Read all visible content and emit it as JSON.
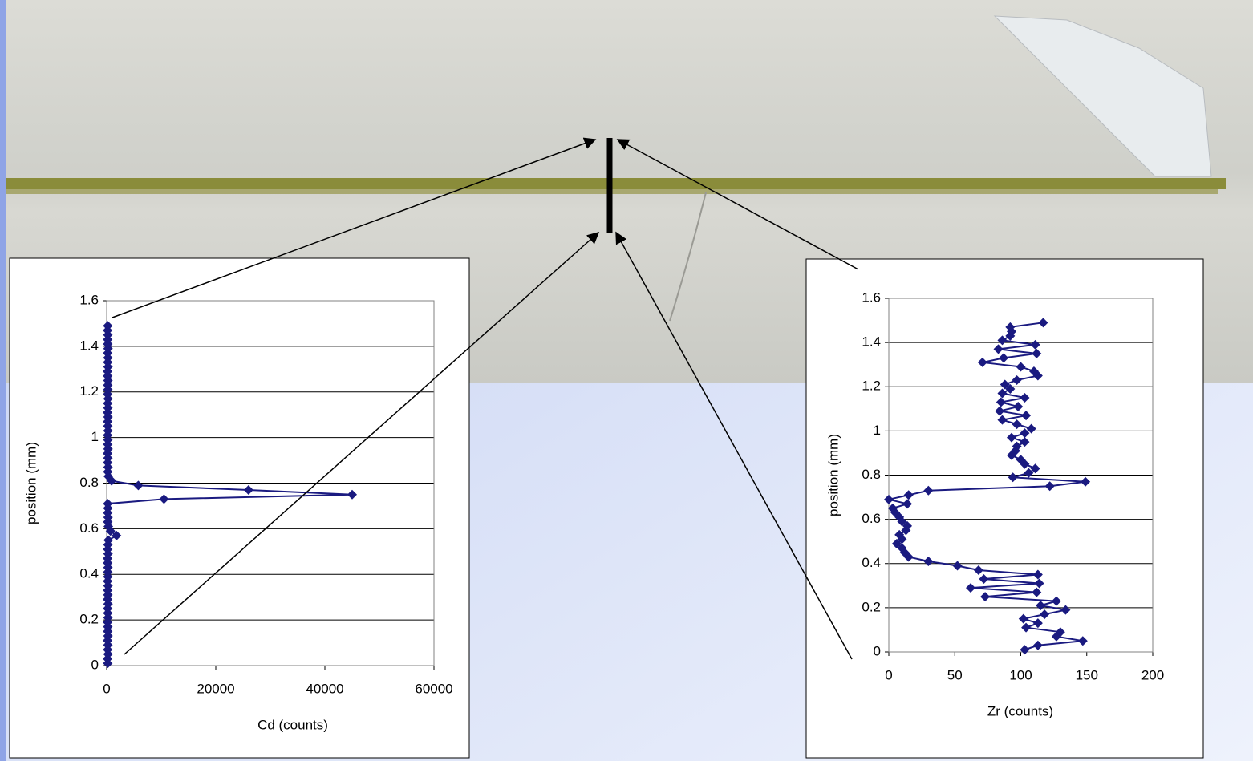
{
  "chart_data": [
    {
      "type": "line",
      "color": "#1a1a80",
      "xlabel": "Cd (counts)",
      "ylabel": "position (mm)",
      "values": [
        200,
        150,
        250,
        180,
        220,
        160,
        240,
        190,
        210,
        170,
        230,
        200,
        180,
        250,
        160,
        220,
        190,
        240,
        170,
        210,
        200,
        230,
        180,
        160,
        250,
        190,
        220,
        300,
        1800,
        700,
        300,
        200,
        250,
        180,
        220,
        200,
        10500,
        45000,
        26000,
        5800,
        900,
        300,
        200,
        240,
        180,
        220,
        160,
        250,
        190,
        210,
        170,
        230,
        200,
        180,
        240,
        160,
        220,
        190,
        250,
        170,
        210,
        200,
        230,
        180,
        160,
        240,
        190,
        220,
        170,
        250,
        200,
        180,
        210,
        160,
        200
      ],
      "y": [
        0.01,
        0.03,
        0.05,
        0.07,
        0.09,
        0.11,
        0.13,
        0.15,
        0.17,
        0.19,
        0.21,
        0.23,
        0.25,
        0.27,
        0.29,
        0.31,
        0.33,
        0.35,
        0.37,
        0.39,
        0.41,
        0.43,
        0.45,
        0.47,
        0.49,
        0.51,
        0.53,
        0.55,
        0.57,
        0.59,
        0.61,
        0.63,
        0.65,
        0.67,
        0.69,
        0.71,
        0.73,
        0.75,
        0.77,
        0.79,
        0.81,
        0.83,
        0.85,
        0.87,
        0.89,
        0.91,
        0.93,
        0.95,
        0.97,
        0.99,
        1.01,
        1.03,
        1.05,
        1.07,
        1.09,
        1.11,
        1.13,
        1.15,
        1.17,
        1.19,
        1.21,
        1.23,
        1.25,
        1.27,
        1.29,
        1.31,
        1.33,
        1.35,
        1.37,
        1.39,
        1.41,
        1.43,
        1.45,
        1.47,
        1.49
      ],
      "xlim": [
        0,
        60000
      ],
      "xticks": [
        0,
        20000,
        40000,
        60000
      ],
      "ylim": [
        0,
        1.6
      ],
      "yticks": [
        0,
        0.2,
        0.4,
        0.6,
        0.8,
        1,
        1.2,
        1.4,
        1.6
      ],
      "grid": true
    },
    {
      "type": "line",
      "color": "#1a1a80",
      "xlabel": "Zr (counts)",
      "ylabel": "position (mm)",
      "values": [
        103,
        113,
        147,
        127,
        130,
        104,
        113,
        102,
        118,
        134,
        115,
        127,
        73,
        112,
        62,
        114,
        72,
        113,
        68,
        52,
        30,
        15,
        12,
        10,
        6,
        10,
        8,
        13,
        14,
        10,
        8,
        5,
        3,
        14,
        0,
        15,
        30,
        122,
        149,
        94,
        106,
        111,
        103,
        100,
        93,
        96,
        97,
        103,
        93,
        103,
        108,
        97,
        86,
        104,
        84,
        98,
        85,
        103,
        86,
        92,
        88,
        97,
        113,
        110,
        100,
        71,
        87,
        112,
        83,
        111,
        86,
        92,
        93,
        92,
        117
      ],
      "y": [
        0.01,
        0.03,
        0.05,
        0.07,
        0.09,
        0.11,
        0.13,
        0.15,
        0.17,
        0.19,
        0.21,
        0.23,
        0.25,
        0.27,
        0.29,
        0.31,
        0.33,
        0.35,
        0.37,
        0.39,
        0.41,
        0.43,
        0.45,
        0.47,
        0.49,
        0.51,
        0.53,
        0.55,
        0.57,
        0.59,
        0.61,
        0.63,
        0.65,
        0.67,
        0.69,
        0.71,
        0.73,
        0.75,
        0.77,
        0.79,
        0.81,
        0.83,
        0.85,
        0.87,
        0.89,
        0.91,
        0.93,
        0.95,
        0.97,
        0.99,
        1.01,
        1.03,
        1.05,
        1.07,
        1.09,
        1.11,
        1.13,
        1.15,
        1.17,
        1.19,
        1.21,
        1.23,
        1.25,
        1.27,
        1.29,
        1.31,
        1.33,
        1.35,
        1.37,
        1.39,
        1.41,
        1.43,
        1.45,
        1.47,
        1.49
      ],
      "xlim": [
        0,
        200
      ],
      "xticks": [
        0,
        50,
        100,
        150,
        200
      ],
      "ylim": [
        0,
        1.6
      ],
      "yticks": [
        0,
        0.2,
        0.4,
        0.6,
        0.8,
        1,
        1.2,
        1.4,
        1.6
      ],
      "grid": true
    }
  ]
}
